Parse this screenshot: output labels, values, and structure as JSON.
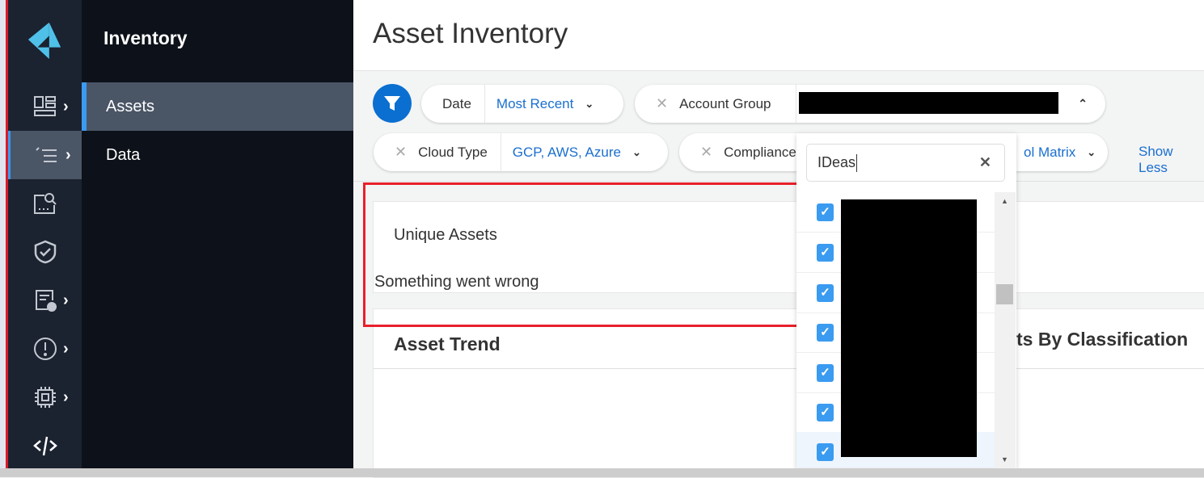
{
  "sidebar": {
    "icons": [
      "logo-icon",
      "dashboard-icon",
      "inventory-icon",
      "investigate-icon",
      "policies-icon",
      "compliance-icon",
      "alerts-icon",
      "compute-icon",
      "code-icon"
    ]
  },
  "subnav": {
    "title": "Inventory",
    "items": [
      {
        "label": "Assets",
        "active": true
      },
      {
        "label": "Data",
        "active": false
      }
    ]
  },
  "header": {
    "title": "Asset Inventory"
  },
  "filters": {
    "date": {
      "label": "Date",
      "value": "Most Recent"
    },
    "account_group": {
      "label": "Account Group",
      "value": "[redacted]"
    },
    "cloud_type": {
      "label": "Cloud Type",
      "value": "GCP, AWS, Azure"
    },
    "compliance": {
      "label": "Compliance",
      "value_partial": "ol Matrix"
    },
    "show_less": "Show Less"
  },
  "dropdown": {
    "search_value": "IDeas",
    "rows": 7,
    "all_checked": true
  },
  "cards": {
    "unique_assets": {
      "title": "Unique Assets",
      "error": "Something went wrong"
    },
    "asset_trend": {
      "title": "Asset Trend"
    },
    "classification": {
      "title_partial": "ts By Classification"
    }
  },
  "colors": {
    "accent": "#0a6fd0",
    "annotation": "#e8202a",
    "checkbox": "#3a9bf0"
  }
}
